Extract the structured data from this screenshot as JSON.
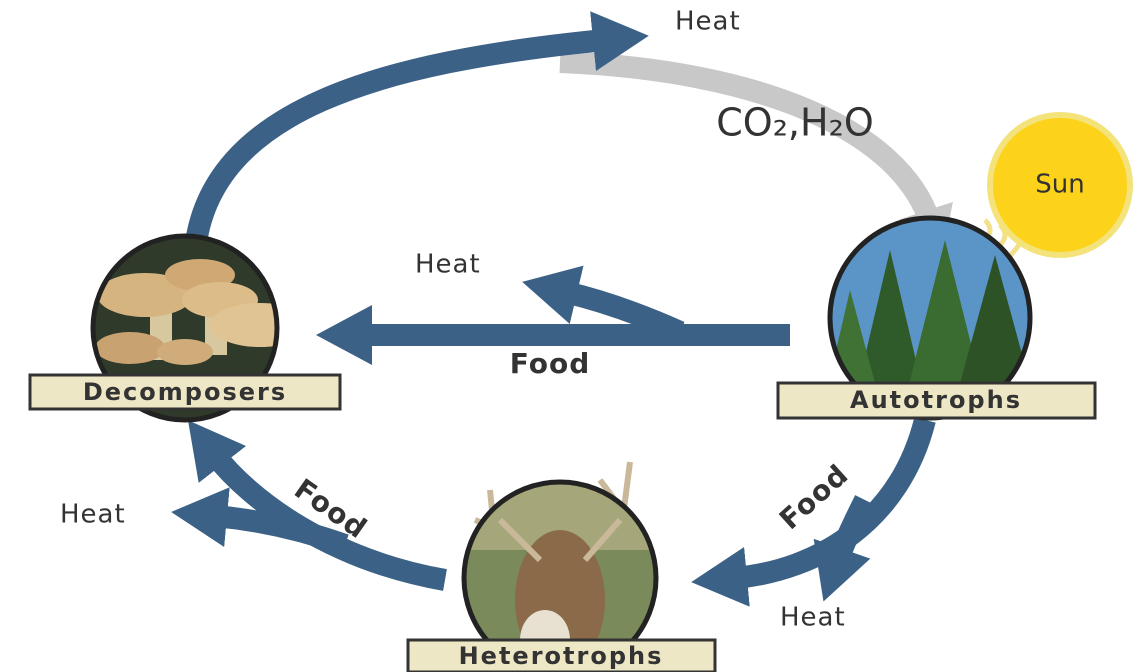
{
  "nodes": [
    {
      "label": "Decomposers"
    },
    {
      "label": "Autotrophs"
    },
    {
      "label": "Heterotrophs"
    }
  ],
  "sun": {
    "label": "Sun"
  },
  "cycle_label": "CO₂,H₂O",
  "food_labels": [
    "Food",
    "Food",
    "Food"
  ],
  "heat_labels": [
    "Heat",
    "Heat",
    "Heat",
    "Heat"
  ]
}
